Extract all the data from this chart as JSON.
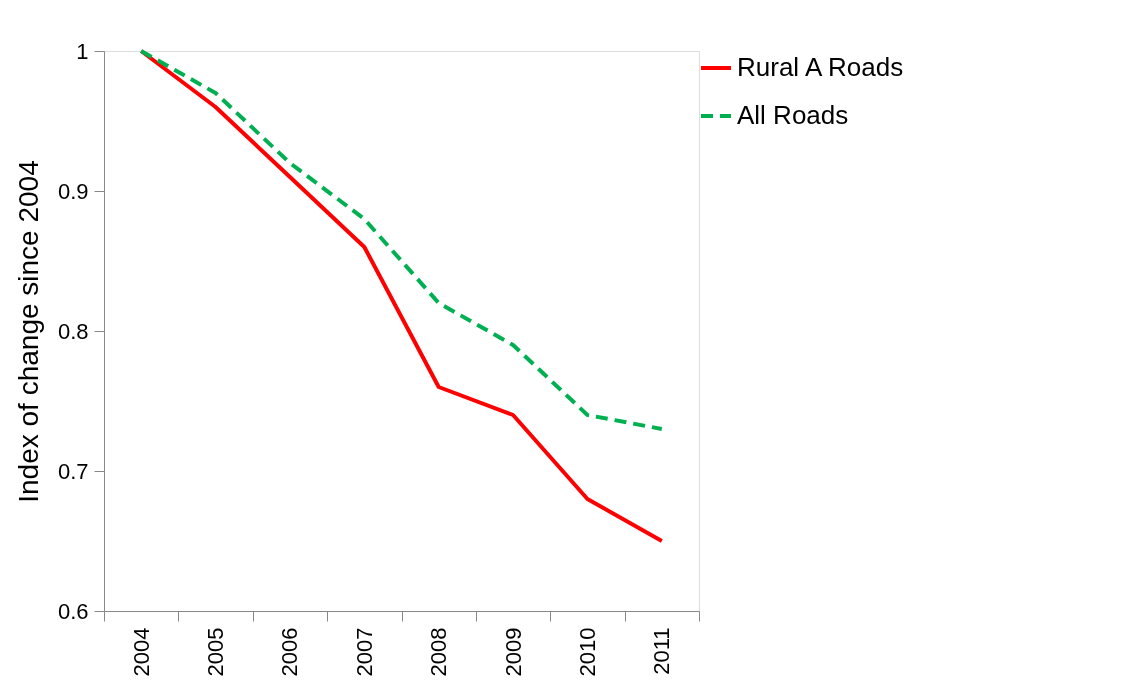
{
  "chart_data": {
    "type": "line",
    "ylabel": "Index of change since 2004",
    "categories": [
      "2004",
      "2005",
      "2006",
      "2007",
      "2008",
      "2009",
      "2010",
      "2011"
    ],
    "series": [
      {
        "name": "Rural A Roads",
        "color": "#ff0000",
        "line_style": "solid",
        "values": [
          1.0,
          0.96,
          0.91,
          0.86,
          0.76,
          0.74,
          0.68,
          0.65
        ]
      },
      {
        "name": "All Roads",
        "color": "#00b050",
        "line_style": "dashed",
        "values": [
          1.0,
          0.97,
          0.92,
          0.88,
          0.82,
          0.79,
          0.74,
          0.73
        ]
      }
    ],
    "ylim": [
      0.6,
      1
    ],
    "yticks": [
      0.6,
      0.7,
      0.8,
      0.9,
      1
    ],
    "grid": false,
    "legend": "right",
    "marker": "none"
  }
}
